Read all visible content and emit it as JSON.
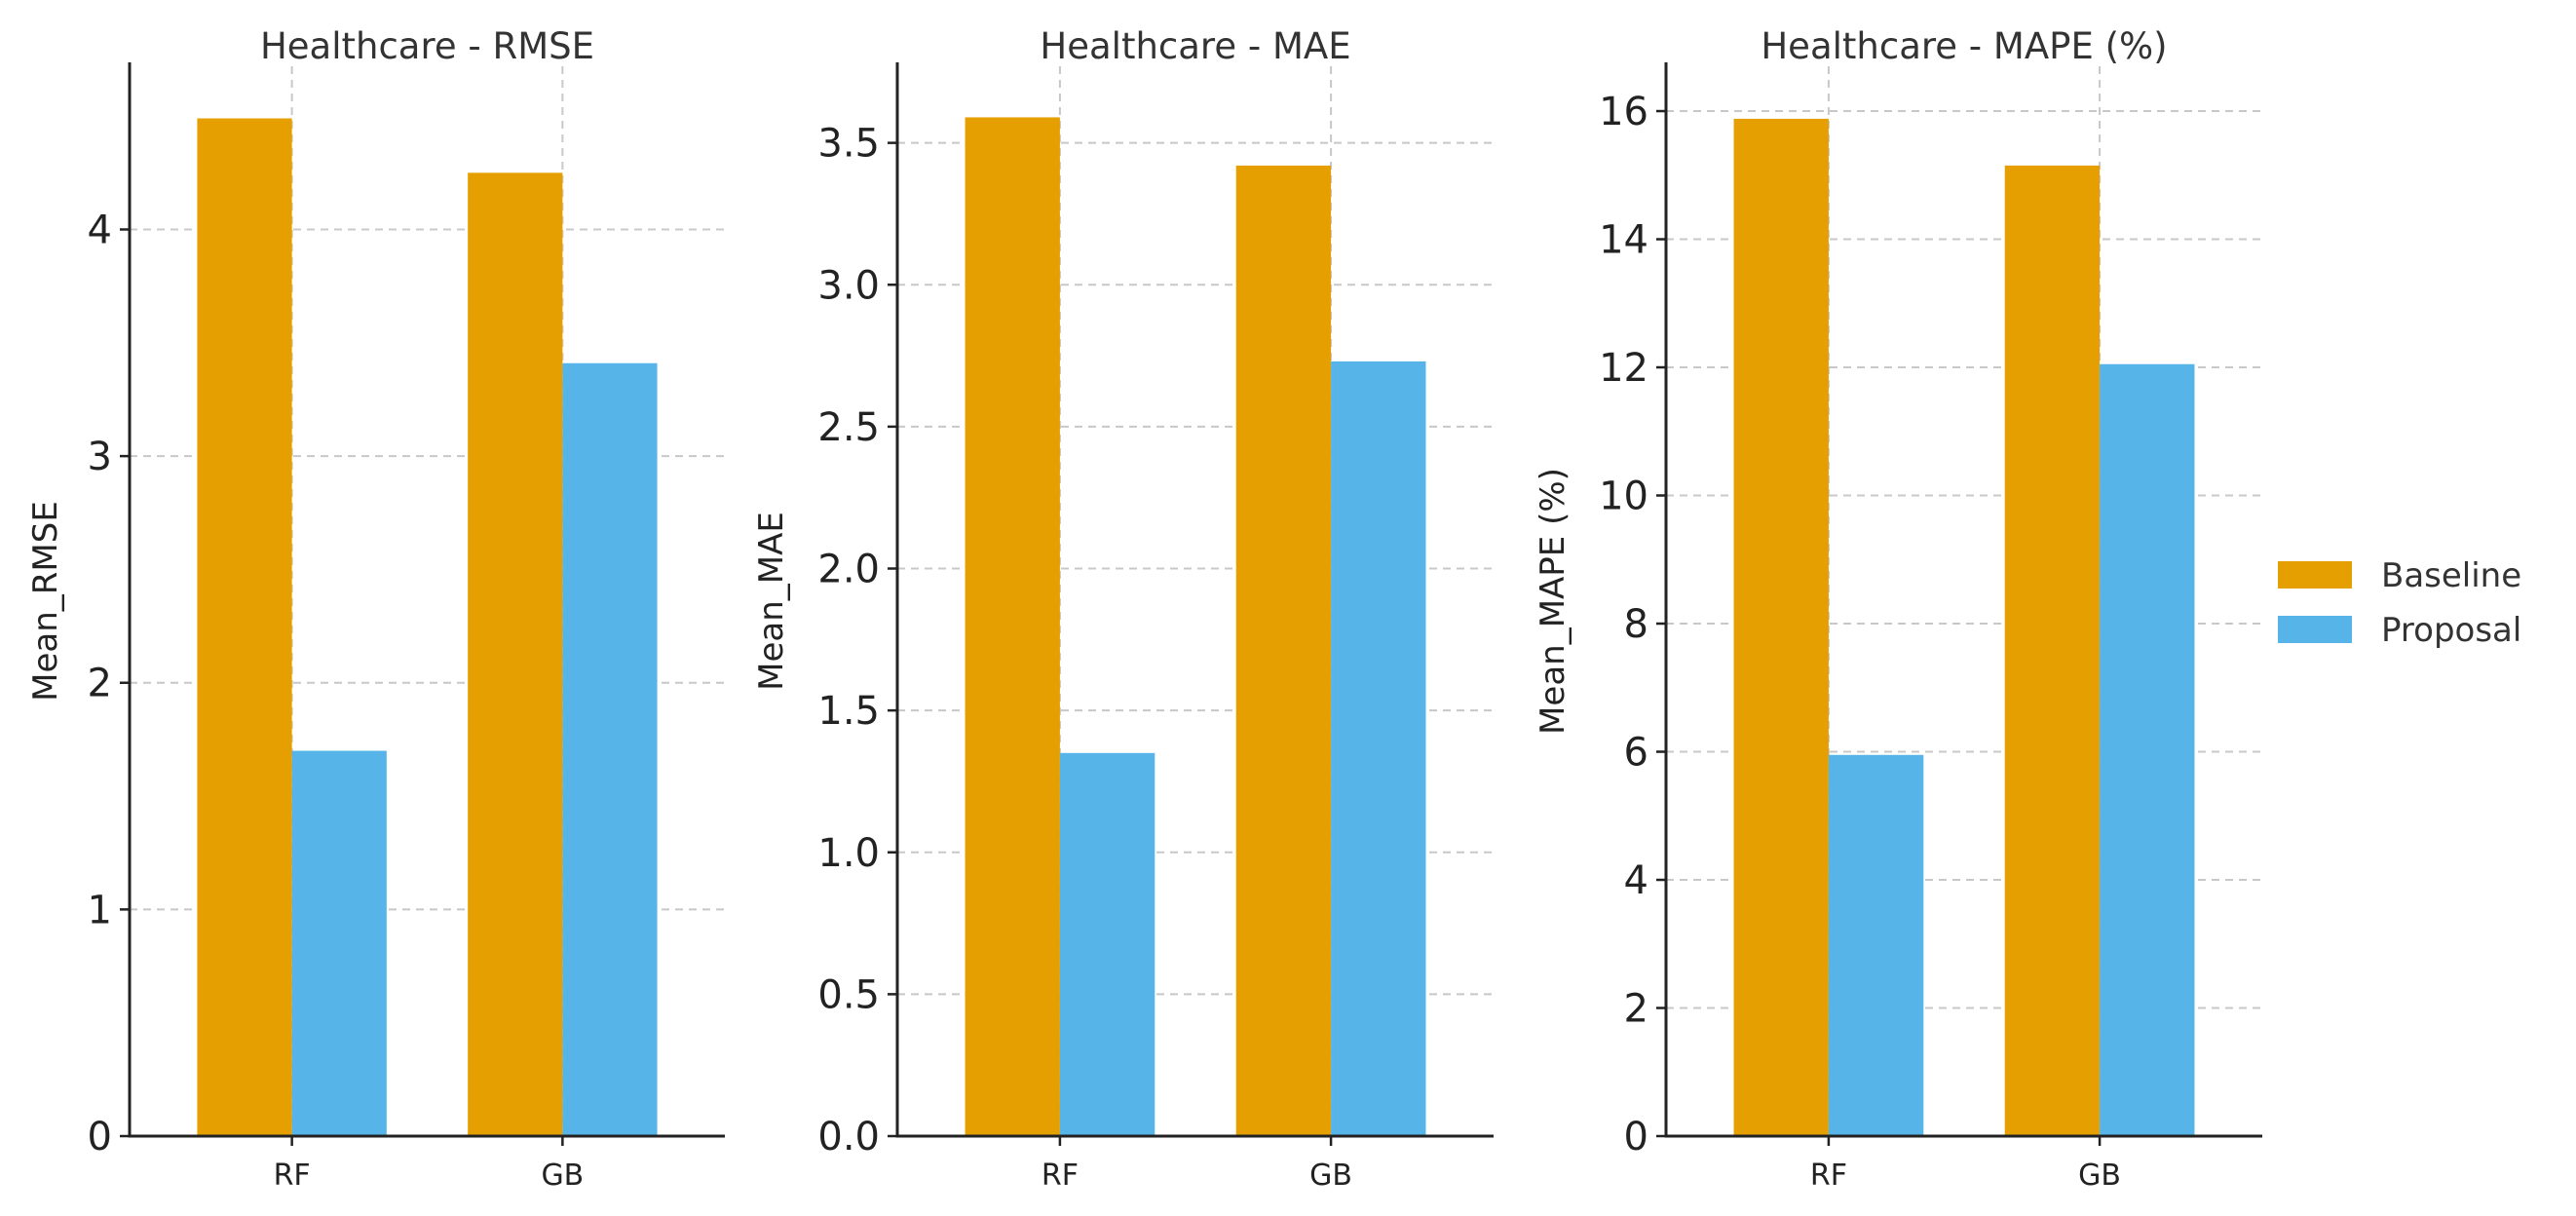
{
  "chart_data": [
    {
      "type": "bar",
      "title": "Healthcare - RMSE",
      "xlabel": "",
      "ylabel": "Mean_RMSE",
      "categories": [
        "RF",
        "GB"
      ],
      "ylim": [
        0,
        4.72
      ],
      "yticks": [
        0,
        1,
        2,
        3,
        4
      ],
      "ytick_labels": [
        "0",
        "1",
        "2",
        "3",
        "4"
      ],
      "grid": true,
      "series": [
        {
          "name": "Baseline",
          "values": [
            4.49,
            4.25
          ]
        },
        {
          "name": "Proposal",
          "values": [
            1.7,
            3.41
          ]
        }
      ]
    },
    {
      "type": "bar",
      "title": "Healthcare - MAE",
      "xlabel": "",
      "ylabel": "Mean_MAE",
      "categories": [
        "RF",
        "GB"
      ],
      "ylim": [
        0,
        3.77
      ],
      "yticks": [
        0,
        0.5,
        1,
        1.5,
        2,
        2.5,
        3,
        3.5
      ],
      "ytick_labels": [
        "0.0",
        "0.5",
        "1.0",
        "1.5",
        "2.0",
        "2.5",
        "3.0",
        "3.5"
      ],
      "grid": true,
      "series": [
        {
          "name": "Baseline",
          "values": [
            3.59,
            3.42
          ]
        },
        {
          "name": "Proposal",
          "values": [
            1.35,
            2.73
          ]
        }
      ]
    },
    {
      "type": "bar",
      "title": "Healthcare - MAPE (%)",
      "xlabel": "",
      "ylabel": "Mean_MAPE (%)",
      "categories": [
        "RF",
        "GB"
      ],
      "ylim": [
        0,
        16.7
      ],
      "yticks": [
        0,
        2,
        4,
        6,
        8,
        10,
        12,
        14,
        16
      ],
      "ytick_labels": [
        "0",
        "2",
        "4",
        "6",
        "8",
        "10",
        "12",
        "14",
        "16"
      ],
      "grid": true,
      "series": [
        {
          "name": "Baseline",
          "values": [
            15.88,
            15.15
          ]
        },
        {
          "name": "Proposal",
          "values": [
            5.95,
            12.05
          ]
        }
      ]
    }
  ],
  "legend": {
    "placement": "right",
    "entries": [
      {
        "label": "Baseline",
        "color": "#E69F00"
      },
      {
        "label": "Proposal",
        "color": "#56B4E9"
      }
    ]
  }
}
